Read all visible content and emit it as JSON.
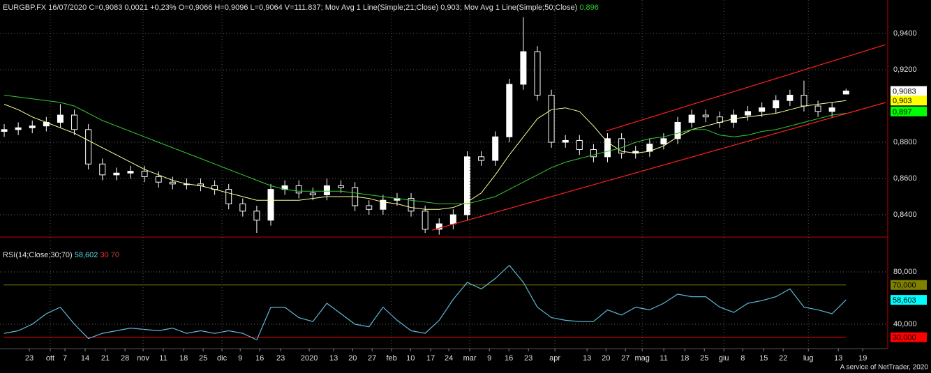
{
  "chart_data": [
    {
      "type": "candlestick",
      "title": "EURGBP.FX 16/07/2020 C=0,9083 0,0021 +0,23% O=0,9066 H=0,9096 L=0,9064 V=111.837; Mov Avg 1 Line(Simple;21;Close) 0,903; Mov Avg 1 Line(Simple;50;Close)",
      "title_value": {
        "text": "0,896",
        "color": "#33cc33"
      },
      "xlim": [
        -0.3,
        62.97
      ],
      "ylim": [
        0.8277,
        0.9585
      ],
      "yticks": [
        {
          "value": 0.94,
          "label": "0,9400"
        },
        {
          "value": 0.92,
          "label": "0,9200"
        },
        {
          "value": 0.88,
          "label": "0,8800"
        },
        {
          "value": 0.86,
          "label": "0,8600"
        },
        {
          "value": 0.84,
          "label": "0,8400"
        }
      ],
      "grid": true,
      "open": [
        0.886,
        0.887,
        0.888,
        0.889,
        0.891,
        0.895,
        0.887,
        0.868,
        0.862,
        0.863,
        0.864,
        0.861,
        0.858,
        0.857,
        0.857,
        0.856,
        0.854,
        0.846,
        0.842,
        0.837,
        0.854,
        0.856,
        0.852,
        0.851,
        0.856,
        0.855,
        0.845,
        0.843,
        0.848,
        0.849,
        0.842,
        0.832,
        0.835,
        0.84,
        0.872,
        0.87,
        0.883,
        0.912,
        0.93,
        0.906,
        0.88,
        0.881,
        0.876,
        0.872,
        0.882,
        0.874,
        0.875,
        0.879,
        0.882,
        0.891,
        0.895,
        0.894,
        0.891,
        0.895,
        0.897,
        0.899,
        0.903,
        0.906,
        0.9,
        0.897,
        0.9066
      ],
      "high": [
        0.89,
        0.891,
        0.892,
        0.894,
        0.901,
        0.898,
        0.89,
        0.871,
        0.866,
        0.867,
        0.867,
        0.864,
        0.861,
        0.86,
        0.86,
        0.859,
        0.857,
        0.849,
        0.845,
        0.857,
        0.859,
        0.859,
        0.855,
        0.86,
        0.859,
        0.858,
        0.848,
        0.851,
        0.852,
        0.852,
        0.845,
        0.838,
        0.843,
        0.875,
        0.875,
        0.886,
        0.915,
        0.949,
        0.933,
        0.909,
        0.884,
        0.884,
        0.879,
        0.885,
        0.885,
        0.878,
        0.882,
        0.885,
        0.894,
        0.898,
        0.898,
        0.897,
        0.898,
        0.9,
        0.902,
        0.906,
        0.909,
        0.914,
        0.903,
        0.902,
        0.9096
      ],
      "low": [
        0.883,
        0.884,
        0.885,
        0.886,
        0.888,
        0.884,
        0.865,
        0.859,
        0.859,
        0.86,
        0.858,
        0.855,
        0.854,
        0.854,
        0.853,
        0.851,
        0.843,
        0.839,
        0.83,
        0.834,
        0.851,
        0.849,
        0.848,
        0.848,
        0.852,
        0.842,
        0.84,
        0.84,
        0.845,
        0.839,
        0.83,
        0.829,
        0.832,
        0.837,
        0.867,
        0.867,
        0.88,
        0.909,
        0.903,
        0.877,
        0.877,
        0.873,
        0.869,
        0.869,
        0.871,
        0.871,
        0.872,
        0.876,
        0.879,
        0.888,
        0.891,
        0.888,
        0.888,
        0.892,
        0.894,
        0.896,
        0.9,
        0.897,
        0.894,
        0.894,
        0.9064
      ],
      "close": [
        0.887,
        0.888,
        0.889,
        0.891,
        0.895,
        0.887,
        0.868,
        0.862,
        0.863,
        0.864,
        0.861,
        0.858,
        0.857,
        0.857,
        0.856,
        0.854,
        0.846,
        0.842,
        0.837,
        0.854,
        0.856,
        0.852,
        0.851,
        0.856,
        0.855,
        0.845,
        0.843,
        0.848,
        0.849,
        0.842,
        0.832,
        0.835,
        0.84,
        0.872,
        0.87,
        0.883,
        0.912,
        0.93,
        0.906,
        0.88,
        0.881,
        0.876,
        0.872,
        0.882,
        0.874,
        0.875,
        0.879,
        0.882,
        0.891,
        0.895,
        0.894,
        0.891,
        0.895,
        0.897,
        0.899,
        0.903,
        0.906,
        0.9,
        0.897,
        0.899,
        0.9083
      ],
      "series": [
        {
          "color": "#ffff99",
          "values": [
            0.901,
            0.898,
            0.894,
            0.891,
            0.888,
            0.885,
            0.881,
            0.877,
            0.873,
            0.869,
            0.865,
            0.862,
            0.859,
            0.857,
            0.856,
            0.854,
            0.852,
            0.85,
            0.848,
            0.848,
            0.848,
            0.848,
            0.849,
            0.85,
            0.85,
            0.85,
            0.849,
            0.847,
            0.846,
            0.844,
            0.843,
            0.843,
            0.844,
            0.847,
            0.852,
            0.862,
            0.873,
            0.883,
            0.893,
            0.898,
            0.899,
            0.897,
            0.889,
            0.88,
            0.875,
            0.874,
            0.875,
            0.878,
            0.883,
            0.887,
            0.889,
            0.891,
            0.893,
            0.894,
            0.895,
            0.896,
            0.898,
            0.9,
            0.901,
            0.902,
            0.903
          ]
        },
        {
          "color": "#33cc33",
          "values": [
            0.906,
            0.905,
            0.904,
            0.903,
            0.902,
            0.9,
            0.896,
            0.892,
            0.889,
            0.886,
            0.883,
            0.88,
            0.877,
            0.874,
            0.871,
            0.868,
            0.865,
            0.862,
            0.859,
            0.856,
            0.854,
            0.853,
            0.853,
            0.853,
            0.853,
            0.852,
            0.851,
            0.85,
            0.849,
            0.848,
            0.847,
            0.846,
            0.846,
            0.846,
            0.848,
            0.85,
            0.854,
            0.858,
            0.862,
            0.866,
            0.869,
            0.871,
            0.873,
            0.875,
            0.877,
            0.88,
            0.882,
            0.883,
            0.885,
            0.887,
            0.887,
            0.884,
            0.883,
            0.884,
            0.886,
            0.887,
            0.889,
            0.891,
            0.893,
            0.895,
            0.896
          ]
        }
      ],
      "trendlines": [
        {
          "color": "#ff2020",
          "x": [
            30.5,
            62.8
          ],
          "y": [
            0.8315,
            0.9019
          ]
        },
        {
          "color": "#ff2020",
          "x": [
            42.9,
            62.8
          ],
          "y": [
            0.8862,
            0.9338
          ]
        }
      ],
      "markers": [
        {
          "value": 0.9083,
          "label": "0,9083",
          "color": "#ffffff"
        },
        {
          "value": 0.903,
          "label": "0,903",
          "color": "#ffff00"
        },
        {
          "value": 0.897,
          "label": "0,897",
          "color": "#00ff00"
        }
      ]
    },
    {
      "type": "line",
      "title": "RSI(14;Close;30;70)",
      "title_values": [
        {
          "text": "58,602",
          "color": "#5fd8e8"
        },
        {
          "text": "30",
          "color": "#ff3030"
        },
        {
          "text": "70",
          "color": "#c04040"
        }
      ],
      "xlim": [
        -0.3,
        62.97
      ],
      "ylim": [
        21.33,
        101.33
      ],
      "yticks": [
        {
          "value": 80,
          "label": "80,000"
        },
        {
          "value": 40,
          "label": "40,000"
        }
      ],
      "grid": true,
      "color": "#5fb8d8",
      "values": [
        33,
        35,
        40,
        48,
        53,
        40,
        29,
        33,
        35,
        37,
        36,
        35,
        37,
        33,
        35,
        33,
        35,
        33,
        28,
        53,
        53,
        45,
        42,
        56,
        48,
        40,
        38,
        53,
        43,
        35,
        33,
        43,
        59,
        72,
        67,
        75,
        85,
        72,
        53,
        45,
        43,
        42,
        42,
        51,
        47,
        53,
        51,
        56,
        63,
        61,
        61,
        53,
        49,
        56,
        58,
        61,
        67,
        53,
        51,
        48,
        58.6
      ],
      "levels": [
        {
          "value": 70,
          "label": "70,000",
          "color": "#808000"
        },
        {
          "value": 30,
          "label": "30,000",
          "color": "#ff0000"
        }
      ],
      "markers": [
        {
          "value": 58.603,
          "label": "58,603",
          "color": "#00ffff"
        }
      ],
      "xticks": [
        {
          "value": 1.79,
          "label": "23"
        },
        {
          "value": 3.28,
          "label": "ott"
        },
        {
          "value": 4.33,
          "label": "7"
        },
        {
          "value": 5.77,
          "label": "14"
        },
        {
          "value": 7.21,
          "label": "21"
        },
        {
          "value": 8.61,
          "label": "28"
        },
        {
          "value": 9.9,
          "label": "nov"
        },
        {
          "value": 11.34,
          "label": "11"
        },
        {
          "value": 12.79,
          "label": "18"
        },
        {
          "value": 14.18,
          "label": "25"
        },
        {
          "value": 15.52,
          "label": "dic"
        },
        {
          "value": 16.82,
          "label": "9"
        },
        {
          "value": 18.21,
          "label": "16"
        },
        {
          "value": 19.7,
          "label": "23"
        },
        {
          "value": 21.74,
          "label": "2020"
        },
        {
          "value": 23.48,
          "label": "13"
        },
        {
          "value": 24.83,
          "label": "20"
        },
        {
          "value": 26.22,
          "label": "27"
        },
        {
          "value": 27.61,
          "label": "feb"
        },
        {
          "value": 28.96,
          "label": "10"
        },
        {
          "value": 30.4,
          "label": "17"
        },
        {
          "value": 31.69,
          "label": "24"
        },
        {
          "value": 33.18,
          "label": "mar"
        },
        {
          "value": 34.58,
          "label": "9"
        },
        {
          "value": 35.97,
          "label": "16"
        },
        {
          "value": 37.36,
          "label": "23"
        },
        {
          "value": 39.25,
          "label": "apr"
        },
        {
          "value": 41.54,
          "label": "13"
        },
        {
          "value": 42.89,
          "label": "20"
        },
        {
          "value": 44.28,
          "label": "27"
        },
        {
          "value": 45.47,
          "label": "mag"
        },
        {
          "value": 47.01,
          "label": "11"
        },
        {
          "value": 48.51,
          "label": "18"
        },
        {
          "value": 49.9,
          "label": "25"
        },
        {
          "value": 51.29,
          "label": "giu"
        },
        {
          "value": 52.64,
          "label": "8"
        },
        {
          "value": 54.13,
          "label": "15"
        },
        {
          "value": 55.52,
          "label": "22"
        },
        {
          "value": 57.31,
          "label": "lug"
        },
        {
          "value": 59.45,
          "label": "13"
        },
        {
          "value": 61.19,
          "label": "19"
        }
      ]
    }
  ],
  "footer": "A service of NetTrader, 2020"
}
